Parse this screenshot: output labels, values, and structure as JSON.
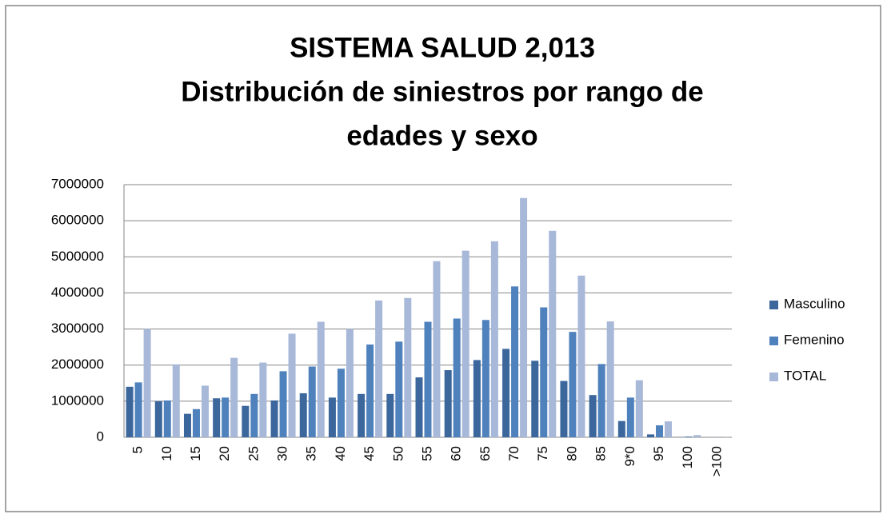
{
  "chart_data": {
    "type": "bar",
    "title": [
      "SISTEMA SALUD 2,013",
      "Distribución de siniestros por rango de",
      "edades y sexo"
    ],
    "categories": [
      "5",
      "10",
      "15",
      "20",
      "25",
      "30",
      "35",
      "40",
      "45",
      "50",
      "55",
      "60",
      "65",
      "70",
      "75",
      "80",
      "85",
      "9*0",
      "95",
      "100",
      ">100"
    ],
    "series": [
      {
        "name": "Masculino",
        "color": "#3c679d",
        "values": [
          1400000,
          1000000,
          650000,
          1080000,
          870000,
          1020000,
          1220000,
          1100000,
          1200000,
          1200000,
          1660000,
          1860000,
          2140000,
          2450000,
          2120000,
          1560000,
          1170000,
          450000,
          80000,
          5000,
          0
        ]
      },
      {
        "name": "Femenino",
        "color": "#4f81bd",
        "values": [
          1520000,
          1020000,
          780000,
          1100000,
          1200000,
          1830000,
          1960000,
          1900000,
          2570000,
          2650000,
          3200000,
          3290000,
          3250000,
          4180000,
          3600000,
          2920000,
          2030000,
          1100000,
          330000,
          20000,
          3000
        ]
      },
      {
        "name": "TOTAL",
        "color": "#a8b8d8",
        "values": [
          3000000,
          2020000,
          1430000,
          2200000,
          2070000,
          2870000,
          3200000,
          3000000,
          3790000,
          3860000,
          4880000,
          5170000,
          5430000,
          6630000,
          5720000,
          4480000,
          3210000,
          1580000,
          440000,
          60000,
          5000
        ]
      }
    ],
    "ylim": [
      0,
      7000000
    ],
    "yticks": [
      0,
      1000000,
      2000000,
      3000000,
      4000000,
      5000000,
      6000000,
      7000000
    ],
    "grid": true,
    "legend": "right"
  }
}
